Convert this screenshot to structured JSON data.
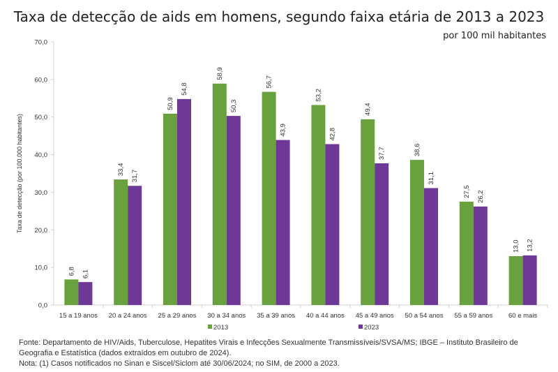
{
  "chart_data": {
    "type": "bar",
    "title": "Taxa de detecção de aids  em homens, segundo faixa etária de 2013 a 2023",
    "subtitle": "por 100 mil habitantes",
    "ylabel": "Taxa de detecção (por 100.000 habitantes)",
    "xlabel": "",
    "ylim": [
      0,
      70
    ],
    "yticks": [
      "0,0",
      "10,0",
      "20,0",
      "30,0",
      "40,0",
      "50,0",
      "60,0",
      "70,0"
    ],
    "grid": false,
    "legend_position": "bottom",
    "categories": [
      "15 a 19 anos",
      "20 a 24 anos",
      "25 a 29 anos",
      "30 a 34 anos",
      "35 a 39 anos",
      "40 a 44 anos",
      "45 a 49 anos",
      "50 a 54 anos",
      "55 a 59 anos",
      "60 e mais"
    ],
    "series": [
      {
        "name": "2013",
        "color": "#6aa13f",
        "values": [
          6.8,
          33.4,
          50.9,
          58.9,
          56.7,
          53.2,
          49.4,
          38.6,
          27.5,
          13.0
        ],
        "labels": [
          "6,8",
          "33,4",
          "50,9",
          "58,9",
          "56,7",
          "53,2",
          "49,4",
          "38,6",
          "27,5",
          "13,0"
        ]
      },
      {
        "name": "2023",
        "color": "#6e3896",
        "values": [
          6.1,
          31.7,
          54.8,
          50.3,
          43.9,
          42.8,
          37.7,
          31.1,
          26.2,
          13.2
        ],
        "labels": [
          "6,1",
          "31,7",
          "54,8",
          "50,3",
          "43,9",
          "42,8",
          "37,7",
          "31,1",
          "26,2",
          "13,2"
        ]
      }
    ]
  },
  "footer": {
    "source": "Fonte: Departamento de HIV/Aids, Tuberculose, Hepatites Virais e Infecções Sexualmente Transmissíveis/SVSA/MS; IBGE – Instituto Brasileiro de Geografia e Estatística (dados extraídos em outubro de 2024).",
    "note": "Nota: (1) Casos notificados no Sinan e Siscel/Siclom até 30/06/2024; no SIM, de 2000 a 2023."
  }
}
